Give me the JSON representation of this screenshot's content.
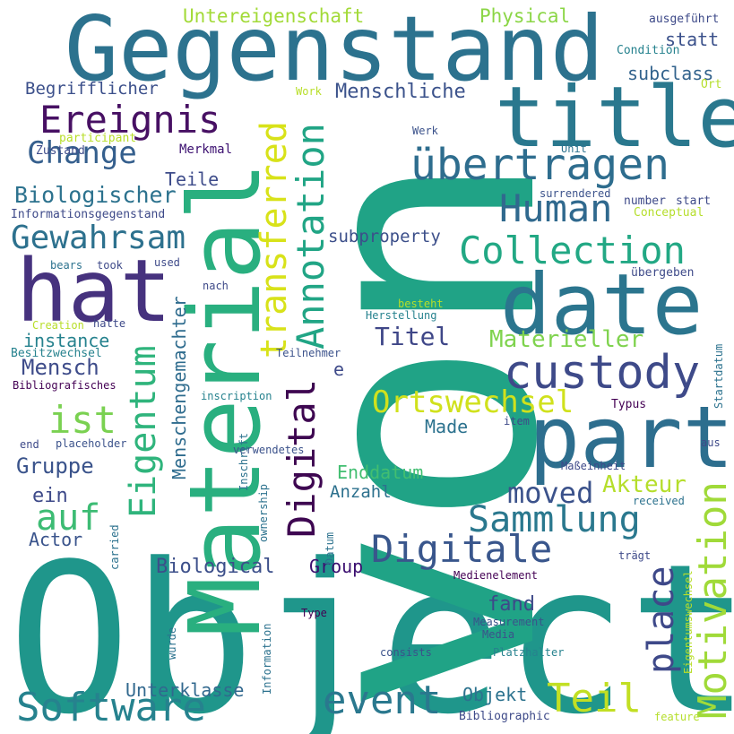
{
  "words": [
    {
      "text": "Object",
      "color": "#1f968b"
    },
    {
      "text": "von",
      "color": "#20a386"
    },
    {
      "text": "Material",
      "color": "#29af7f"
    },
    {
      "text": "Gegenstand",
      "color": "#2c728e"
    },
    {
      "text": "title",
      "color": "#2a788e"
    },
    {
      "text": "part",
      "color": "#2d6e8e"
    },
    {
      "text": "date",
      "color": "#2b758e"
    },
    {
      "text": "hat",
      "color": "#46327e"
    },
    {
      "text": "custody",
      "color": "#3e4a89"
    },
    {
      "text": "übertragen",
      "color": "#2e6d8e"
    },
    {
      "text": "Ereignis",
      "color": "#471063"
    },
    {
      "text": "Human",
      "color": "#30698e"
    },
    {
      "text": "Collection",
      "color": "#22a884"
    },
    {
      "text": "Digital",
      "color": "#3e0751"
    },
    {
      "text": "Annotation",
      "color": "#21a585"
    },
    {
      "text": "transferred",
      "color": "#d8e219"
    },
    {
      "text": "Eigentum",
      "color": "#2fb47c"
    },
    {
      "text": "Gewahrsam",
      "color": "#2d718e"
    },
    {
      "text": "ist",
      "color": "#7ad151"
    },
    {
      "text": "auf",
      "color": "#3dbc74"
    },
    {
      "text": "Change",
      "color": "#355f8d"
    },
    {
      "text": "Software",
      "color": "#26828e"
    },
    {
      "text": "event",
      "color": "#2a788e"
    },
    {
      "text": "Teil",
      "color": "#c2df23"
    },
    {
      "text": "Digitale",
      "color": "#39568c"
    },
    {
      "text": "Sammlung",
      "color": "#2a788e"
    },
    {
      "text": "Motivation",
      "color": "#a0da39"
    },
    {
      "text": "place",
      "color": "#3e4989"
    },
    {
      "text": "Ortswechsel",
      "color": "#d0e11c"
    },
    {
      "text": "moved",
      "color": "#3b528b"
    },
    {
      "text": "Akteur",
      "color": "#b5de2b"
    },
    {
      "text": "Materieller",
      "color": "#7fd34e"
    },
    {
      "text": "Titel",
      "color": "#3f4788"
    },
    {
      "text": "Menschliche",
      "color": "#3b528b"
    },
    {
      "text": "Biologischer",
      "color": "#2c728e"
    },
    {
      "text": "Mensch",
      "color": "#3e4c8a"
    },
    {
      "text": "Gruppe",
      "color": "#3a538b"
    },
    {
      "text": "Biological",
      "color": "#3c4f8a"
    },
    {
      "text": "Unterklasse",
      "color": "#31688e"
    },
    {
      "text": "Menschengemachter",
      "color": "#2f6c8e"
    },
    {
      "text": "Untereigenschaft",
      "color": "#a2da37"
    },
    {
      "text": "Physical",
      "color": "#8bd646"
    },
    {
      "text": "subclass",
      "color": "#33638d"
    },
    {
      "text": "statt",
      "color": "#3b518b"
    },
    {
      "text": "Begrifflicher",
      "color": "#3c508b"
    },
    {
      "text": "Teile",
      "color": "#3e4c8a"
    },
    {
      "text": "Merkmal",
      "color": "#3b0f70"
    },
    {
      "text": "subproperty",
      "color": "#3c4f8a"
    },
    {
      "text": "instance",
      "color": "#26828e"
    },
    {
      "text": "Enddatum",
      "color": "#42be71"
    },
    {
      "text": "Anzahl",
      "color": "#2d718e"
    },
    {
      "text": "fand",
      "color": "#3e4989"
    },
    {
      "text": "Made",
      "color": "#2c728e"
    },
    {
      "text": "ein",
      "color": "#3e4a89"
    },
    {
      "text": "Actor",
      "color": "#3a548c"
    },
    {
      "text": "Group",
      "color": "#3b0f70"
    },
    {
      "text": "Objekt",
      "color": "#2c728e"
    },
    {
      "text": "e",
      "color": "#3e4a89"
    },
    {
      "text": "Werk",
      "color": "#3b528b"
    },
    {
      "text": "Work",
      "color": "#b8de29"
    },
    {
      "text": "Unit",
      "color": "#2c728e"
    },
    {
      "text": "Zustand",
      "color": "#3e4c8a"
    },
    {
      "text": "participant",
      "color": "#b8de29"
    },
    {
      "text": "Informationsgegenstand",
      "color": "#3e4a89"
    },
    {
      "text": "surrendered",
      "color": "#3b528b"
    },
    {
      "text": "number",
      "color": "#3e4a89"
    },
    {
      "text": "start",
      "color": "#3e4a89"
    },
    {
      "text": "Conceptual",
      "color": "#b5de2b"
    },
    {
      "text": "ausgeführt",
      "color": "#3e4a89"
    },
    {
      "text": "Condition",
      "color": "#26828e"
    },
    {
      "text": "Ort",
      "color": "#b5de2b"
    },
    {
      "text": "bears",
      "color": "#2c728e"
    },
    {
      "text": "took",
      "color": "#3e4a89"
    },
    {
      "text": "used",
      "color": "#3e4a89"
    },
    {
      "text": "übergeben",
      "color": "#3e4a89"
    },
    {
      "text": "nach",
      "color": "#3e4a89"
    },
    {
      "text": "besteht",
      "color": "#b5de2b"
    },
    {
      "text": "Herstellung",
      "color": "#26828e"
    },
    {
      "text": "Creation",
      "color": "#b8de29"
    },
    {
      "text": "hatte",
      "color": "#3e4a89"
    },
    {
      "text": "Besitzwechsel",
      "color": "#26828e"
    },
    {
      "text": "Teilnehmer",
      "color": "#3b528b"
    },
    {
      "text": "Bibliografisches",
      "color": "#440154"
    },
    {
      "text": "inscription",
      "color": "#26828e"
    },
    {
      "text": "Typus",
      "color": "#440154"
    },
    {
      "text": "Startdatum",
      "color": "#2c728e"
    },
    {
      "text": "end",
      "color": "#3e4a89"
    },
    {
      "text": "placeholder",
      "color": "#3b528b"
    },
    {
      "text": "verwendetes",
      "color": "#3b528b"
    },
    {
      "text": "Inschrift",
      "color": "#2c728e"
    },
    {
      "text": "ownership",
      "color": "#2c728e"
    },
    {
      "text": "item",
      "color": "#3e4a89"
    },
    {
      "text": "aus",
      "color": "#3e4a89"
    },
    {
      "text": "Maßeinheit",
      "color": "#3e4a89"
    },
    {
      "text": "received",
      "color": "#2c728e"
    },
    {
      "text": "carried",
      "color": "#2c728e"
    },
    {
      "text": "Datum",
      "color": "#2c728e"
    },
    {
      "text": "trägt",
      "color": "#3e4a89"
    },
    {
      "text": "Eigentumswechsel",
      "color": "#b8de29"
    },
    {
      "text": "Medienelement",
      "color": "#440154"
    },
    {
      "text": "Type",
      "color": "#440154"
    },
    {
      "text": "Measurement",
      "color": "#3b528b"
    },
    {
      "text": "Media",
      "color": "#3b528b"
    },
    {
      "text": "wurde",
      "color": "#2c728e"
    },
    {
      "text": "Information",
      "color": "#2c728e"
    },
    {
      "text": "consists",
      "color": "#3b528b"
    },
    {
      "text": "Platzhalter",
      "color": "#26828e"
    },
    {
      "text": "Bibliographic",
      "color": "#3e4a89"
    },
    {
      "text": "feature",
      "color": "#b5de2b"
    }
  ]
}
